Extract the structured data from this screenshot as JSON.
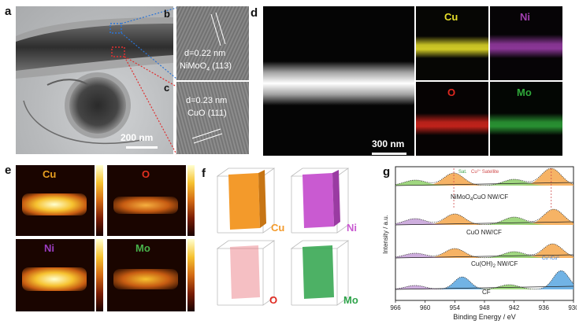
{
  "panels": {
    "a": {
      "label": "a",
      "scalebar": "200 nm"
    },
    "b": {
      "label": "b",
      "line1": "d=0.22 nm",
      "line2_pre": "NiMoO",
      "line2_sub": "4",
      "line2_post": " (113)"
    },
    "c": {
      "label": "c",
      "line1": "d=0.23 nm",
      "line2": "CuO (111)"
    },
    "d": {
      "label": "d",
      "scalebar": "300 nm",
      "maps": [
        "Cu",
        "Ni",
        "O",
        "Mo"
      ]
    },
    "e": {
      "label": "e",
      "maps": [
        "Cu",
        "O",
        "Ni",
        "Mo"
      ]
    },
    "f": {
      "label": "f",
      "maps": [
        "Cu",
        "Ni",
        "O",
        "Mo"
      ]
    },
    "g": {
      "label": "g"
    }
  },
  "colors": {
    "Cu": "#e6df2a",
    "Ni": "#a23fb0",
    "O": "#e0281f",
    "Mo": "#2fa83a",
    "e_label_cu": "#e8a020",
    "e_label_o": "#e0301f",
    "e_label_ni": "#9b3dbf",
    "e_label_mo": "#48b24a",
    "f_cu": "#f39a2b",
    "f_ni": "#c95ad1",
    "f_o": "#e8707a",
    "f_mo": "#2ea34a"
  },
  "chart_data": {
    "type": "line",
    "xlabel": "Binding Energy / eV",
    "ylabel": "Intensity / a.u.",
    "xticks": [
      966,
      960,
      954,
      948,
      942,
      936,
      930
    ],
    "xlim": [
      966,
      930
    ],
    "series": [
      {
        "name": "NiMoO4CuO NW/CF"
      },
      {
        "name": "CuO NW/CF"
      },
      {
        "name": "Cu(OH)2 NW/CF"
      },
      {
        "name": "CF"
      }
    ],
    "labels": {
      "s1_pre": "NiMoO",
      "s1_sub": "4",
      "s1_post": "CuO NW/CF",
      "s2": "CuO NW/CF",
      "s3_pre": "Cu(OH)",
      "s3_sub": "2",
      "s3_post": " NW/CF",
      "s4": "CF",
      "sat": "Sat.",
      "sat2_pre": "Cu",
      "sat2_sup": "2+",
      "sat2_post": " Satellite",
      "cu_pre": "Cu",
      "cu_sup": "+",
      "cu_mid": "/Cu",
      "cu_sup2": "0"
    }
  }
}
